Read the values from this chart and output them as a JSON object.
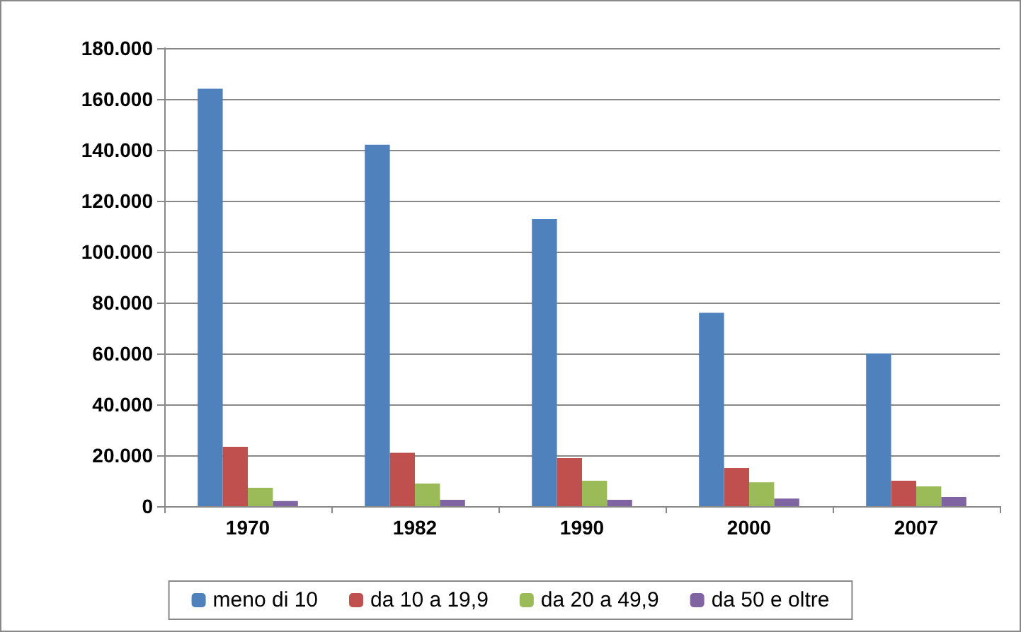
{
  "chart_data": {
    "type": "bar",
    "categories": [
      "1970",
      "1982",
      "1990",
      "2000",
      "2007"
    ],
    "series": [
      {
        "name": "meno di 10",
        "color": "#4f81bd",
        "values": [
          164000,
          142000,
          112800,
          76000,
          60000
        ]
      },
      {
        "name": "da 10 a 19,9",
        "color": "#c0504d",
        "values": [
          23300,
          21000,
          18900,
          15000,
          10000
        ]
      },
      {
        "name": "da 20 a 49,9",
        "color": "#9bbb59",
        "values": [
          7200,
          8900,
          10000,
          9400,
          7800
        ]
      },
      {
        "name": "da 50 e oltre",
        "color": "#8064a2",
        "values": [
          2000,
          2500,
          2500,
          3000,
          3600
        ]
      }
    ],
    "ylim": [
      0,
      180000
    ],
    "yticks": [
      {
        "value": 0,
        "label": "0"
      },
      {
        "value": 20000,
        "label": "20.000"
      },
      {
        "value": 40000,
        "label": "40.000"
      },
      {
        "value": 60000,
        "label": "60.000"
      },
      {
        "value": 80000,
        "label": "80.000"
      },
      {
        "value": 100000,
        "label": "100.000"
      },
      {
        "value": 120000,
        "label": "120.000"
      },
      {
        "value": 140000,
        "label": "140.000"
      },
      {
        "value": 160000,
        "label": "160.000"
      },
      {
        "value": 180000,
        "label": "180.000"
      }
    ],
    "grid": "y",
    "legend": "bottom"
  }
}
